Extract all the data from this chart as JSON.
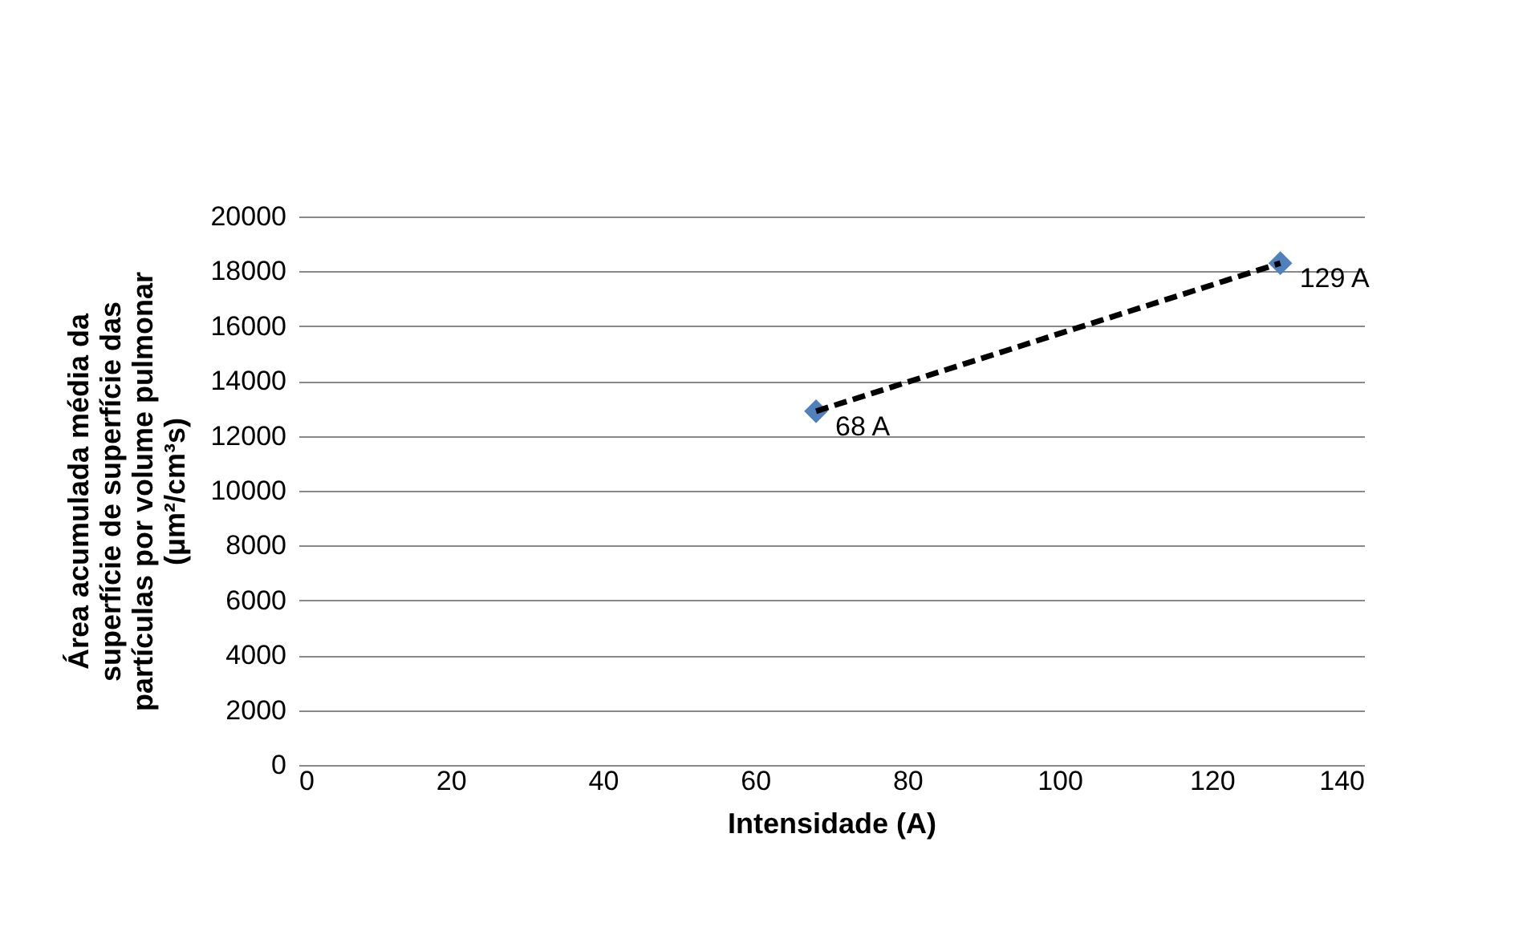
{
  "chart_data": {
    "type": "scatter",
    "xlabel": "Intensidade (A)",
    "ylabel": "Área acumulada média da superfície de superfície das partículas por volume pulmonar (μm²/cm³s)",
    "xlim": [
      0,
      140
    ],
    "xticks": [
      0,
      20,
      40,
      60,
      80,
      100,
      120,
      140
    ],
    "ylim": [
      0,
      20000
    ],
    "yticks": [
      0,
      2000,
      4000,
      6000,
      8000,
      10000,
      12000,
      14000,
      16000,
      18000,
      20000
    ],
    "grid": "y",
    "x": [
      68,
      129
    ],
    "series": [
      {
        "color": "#4f81bd",
        "marker": "diamond",
        "values": [
          12900,
          18300
        ]
      },
      {
        "type": "line",
        "color": "#000000",
        "line_style": "dashed",
        "marker": "none",
        "values": [
          12900,
          18300
        ]
      }
    ],
    "annotations": [
      {
        "text": "68 A",
        "x": 68,
        "y": 12900
      },
      {
        "text": "129 A",
        "x": 129,
        "y": 18300
      }
    ]
  }
}
